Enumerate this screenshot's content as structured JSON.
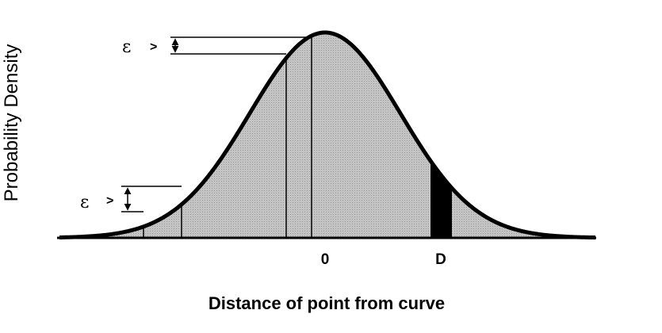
{
  "figure": {
    "ylabel": "Probability  Density",
    "xlabel": "Distance of point from curve",
    "ticks": {
      "zero": "0",
      "d": "D"
    },
    "annotations": {
      "epsilon_top": "ε",
      "gt_top": ">",
      "epsilon_bottom": "ε",
      "gt_bottom": ">"
    }
  },
  "colors": {
    "fill": "#bdbdbd",
    "curve": "#000000",
    "band": "#000000"
  }
}
